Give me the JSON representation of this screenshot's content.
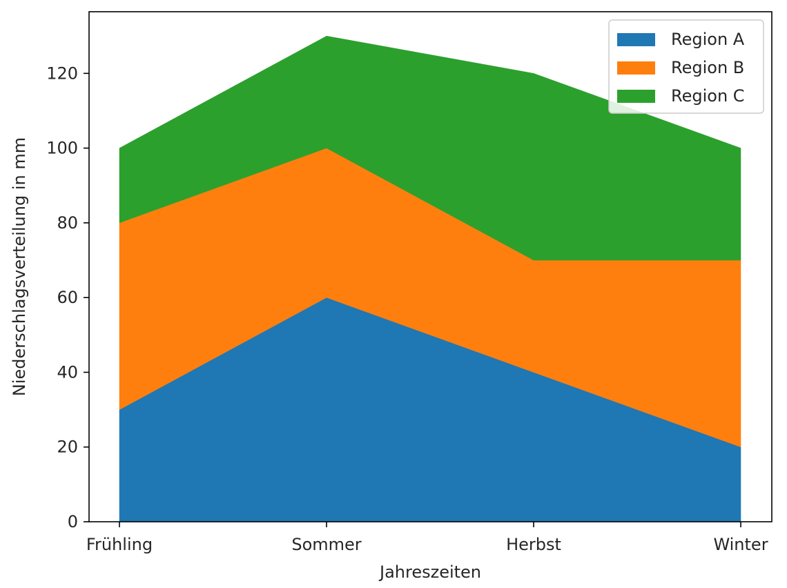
{
  "chart_data": {
    "type": "area",
    "stacked": true,
    "categories": [
      "Frühling",
      "Sommer",
      "Herbst",
      "Winter"
    ],
    "series": [
      {
        "name": "Region A",
        "values": [
          30,
          60,
          40,
          20
        ],
        "color": "#1f77b4"
      },
      {
        "name": "Region B",
        "values": [
          50,
          40,
          30,
          50
        ],
        "color": "#ff7f0e"
      },
      {
        "name": "Region C",
        "values": [
          20,
          30,
          50,
          30
        ],
        "color": "#2ca02c"
      }
    ],
    "title": "",
    "xlabel": "Jahreszeiten",
    "ylabel": "Niederschlagsverteilung in mm",
    "ylim": [
      0,
      136.5
    ],
    "yticks": [
      0,
      20,
      40,
      60,
      80,
      100,
      120
    ],
    "grid": false,
    "legend_position": "top-right"
  }
}
